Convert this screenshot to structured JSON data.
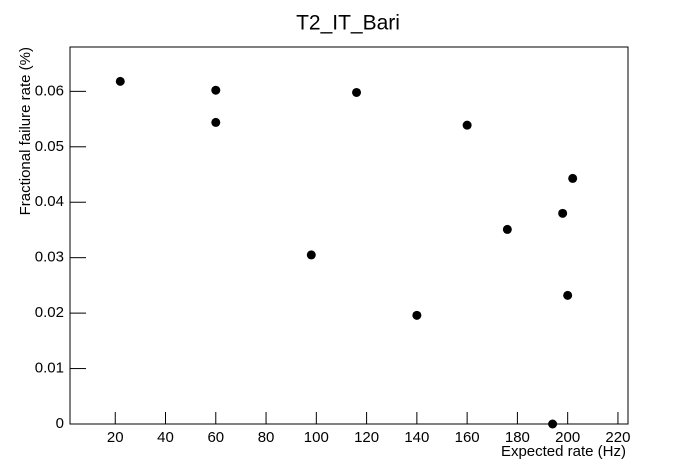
{
  "chart_data": {
    "type": "scatter",
    "title": "T2_IT_Bari",
    "x_label": "Expected rate (Hz)",
    "y_label": "Fractional failure rate (%)",
    "x": [
      22,
      60,
      60,
      98,
      116,
      140,
      160,
      176,
      194,
      198,
      200,
      202
    ],
    "values": [
      0.0618,
      0.0602,
      0.0544,
      0.0305,
      0.0598,
      0.0196,
      0.0539,
      0.0351,
      0,
      0.038,
      0.0232,
      0.0443
    ],
    "color": "#000000",
    "xlim": [
      2,
      224
    ],
    "xticks": [
      20,
      40,
      60,
      80,
      100,
      120,
      140,
      160,
      180,
      200,
      220
    ],
    "ylim": [
      0,
      0.068
    ],
    "yticks": [
      0,
      0.01,
      0.02,
      0.03,
      0.04,
      0.05,
      0.06
    ]
  }
}
